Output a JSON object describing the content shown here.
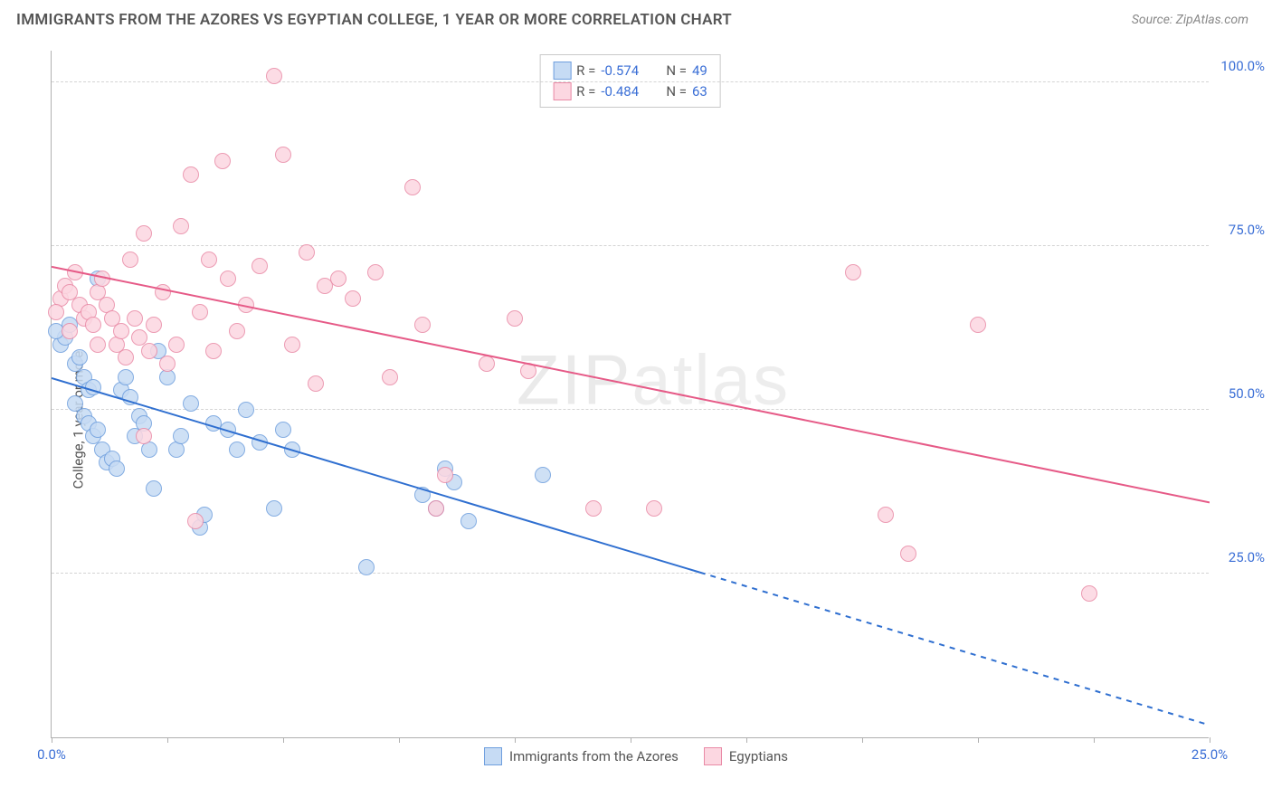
{
  "title": "IMMIGRANTS FROM THE AZORES VS EGYPTIAN COLLEGE, 1 YEAR OR MORE CORRELATION CHART",
  "source": "Source: ZipAtlas.com",
  "y_axis_label": "College, 1 year or more",
  "watermark": "ZIPatlas",
  "chart": {
    "type": "scatter",
    "background_color": "#ffffff",
    "grid_color": "#d4d4d4",
    "axis_color": "#b0b0b0",
    "tick_label_color": "#3b6fd6",
    "xlim": [
      0,
      25
    ],
    "ylim": [
      0,
      105
    ],
    "x_ticks": [
      0,
      2.5,
      5,
      7.5,
      10,
      12.5,
      15,
      17.5,
      20,
      22.5,
      25
    ],
    "x_tick_labels": {
      "0": "0.0%",
      "25": "25.0%"
    },
    "y_ticks": [
      25,
      50,
      75,
      100
    ],
    "y_tick_labels": {
      "25": "25.0%",
      "50": "50.0%",
      "75": "75.0%",
      "100": "100.0%"
    },
    "series": [
      {
        "name": "Immigrants from the Azores",
        "marker_fill": "#c6dbf4",
        "marker_stroke": "#6f9fde",
        "marker_radius": 9,
        "trend_color": "#2f6fd0",
        "trend_width": 2,
        "r_value": "-0.574",
        "n_value": "49",
        "trend": {
          "y_at_x0": 55,
          "y_at_xmax": 2,
          "solid_until_x": 14
        },
        "points": [
          [
            0.2,
            60
          ],
          [
            0.3,
            61
          ],
          [
            0.4,
            63
          ],
          [
            0.5,
            57
          ],
          [
            0.6,
            58
          ],
          [
            0.7,
            55
          ],
          [
            0.8,
            53
          ],
          [
            0.9,
            53.5
          ],
          [
            0.5,
            51
          ],
          [
            0.7,
            49
          ],
          [
            0.8,
            48
          ],
          [
            0.9,
            46
          ],
          [
            1.0,
            47
          ],
          [
            1.1,
            44
          ],
          [
            1.2,
            42
          ],
          [
            1.3,
            42.5
          ],
          [
            1.4,
            41
          ],
          [
            1.5,
            53
          ],
          [
            1.6,
            55
          ],
          [
            1.7,
            52
          ],
          [
            1.8,
            46
          ],
          [
            1.9,
            49
          ],
          [
            2.0,
            48
          ],
          [
            2.1,
            44
          ],
          [
            2.2,
            38
          ],
          [
            2.3,
            59
          ],
          [
            2.5,
            55
          ],
          [
            2.7,
            44
          ],
          [
            2.8,
            46
          ],
          [
            3.0,
            51
          ],
          [
            3.2,
            32
          ],
          [
            3.3,
            34
          ],
          [
            3.5,
            48
          ],
          [
            3.8,
            47
          ],
          [
            4.0,
            44
          ],
          [
            4.2,
            50
          ],
          [
            4.5,
            45
          ],
          [
            4.8,
            35
          ],
          [
            5.0,
            47
          ],
          [
            5.2,
            44
          ],
          [
            6.8,
            26
          ],
          [
            8.0,
            37
          ],
          [
            8.3,
            35
          ],
          [
            8.5,
            41
          ],
          [
            8.7,
            39
          ],
          [
            9.0,
            33
          ],
          [
            10.6,
            40
          ],
          [
            1.0,
            70
          ],
          [
            0.1,
            62
          ]
        ]
      },
      {
        "name": "Egyptians",
        "marker_fill": "#fcd7e1",
        "marker_stroke": "#e98aa6",
        "marker_radius": 9,
        "trend_color": "#e65a87",
        "trend_width": 2,
        "r_value": "-0.484",
        "n_value": "63",
        "trend": {
          "y_at_x0": 72,
          "y_at_xmax": 36,
          "solid_until_x": 25
        },
        "points": [
          [
            0.2,
            67
          ],
          [
            0.3,
            69
          ],
          [
            0.4,
            68
          ],
          [
            0.5,
            71
          ],
          [
            0.6,
            66
          ],
          [
            0.7,
            64
          ],
          [
            0.8,
            65
          ],
          [
            0.9,
            63
          ],
          [
            1.0,
            68
          ],
          [
            1.1,
            70
          ],
          [
            1.2,
            66
          ],
          [
            1.3,
            64
          ],
          [
            1.4,
            60
          ],
          [
            1.5,
            62
          ],
          [
            1.6,
            58
          ],
          [
            1.7,
            73
          ],
          [
            1.8,
            64
          ],
          [
            1.9,
            61
          ],
          [
            2.0,
            77
          ],
          [
            2.1,
            59
          ],
          [
            2.2,
            63
          ],
          [
            2.4,
            68
          ],
          [
            2.5,
            57
          ],
          [
            2.7,
            60
          ],
          [
            2.8,
            78
          ],
          [
            3.0,
            86
          ],
          [
            3.2,
            65
          ],
          [
            3.4,
            73
          ],
          [
            3.5,
            59
          ],
          [
            3.7,
            88
          ],
          [
            3.8,
            70
          ],
          [
            4.0,
            62
          ],
          [
            4.2,
            66
          ],
          [
            4.5,
            72
          ],
          [
            4.8,
            101
          ],
          [
            5.0,
            89
          ],
          [
            5.2,
            60
          ],
          [
            5.5,
            74
          ],
          [
            5.7,
            54
          ],
          [
            5.9,
            69
          ],
          [
            6.2,
            70
          ],
          [
            6.5,
            67
          ],
          [
            7.0,
            71
          ],
          [
            7.3,
            55
          ],
          [
            7.8,
            84
          ],
          [
            8.0,
            63
          ],
          [
            8.3,
            35
          ],
          [
            8.5,
            40
          ],
          [
            9.4,
            57
          ],
          [
            10.0,
            64
          ],
          [
            10.3,
            56
          ],
          [
            11.7,
            35
          ],
          [
            13.0,
            35
          ],
          [
            17.3,
            71
          ],
          [
            18.0,
            34
          ],
          [
            18.5,
            28
          ],
          [
            20.0,
            63
          ],
          [
            22.4,
            22
          ],
          [
            3.1,
            33
          ],
          [
            2.0,
            46
          ],
          [
            1.0,
            60
          ],
          [
            0.4,
            62
          ],
          [
            0.1,
            65
          ]
        ]
      }
    ],
    "legend": {
      "r_label": "R =",
      "n_label": "N =",
      "value_color": "#3b6fd6",
      "label_color": "#555555"
    }
  }
}
